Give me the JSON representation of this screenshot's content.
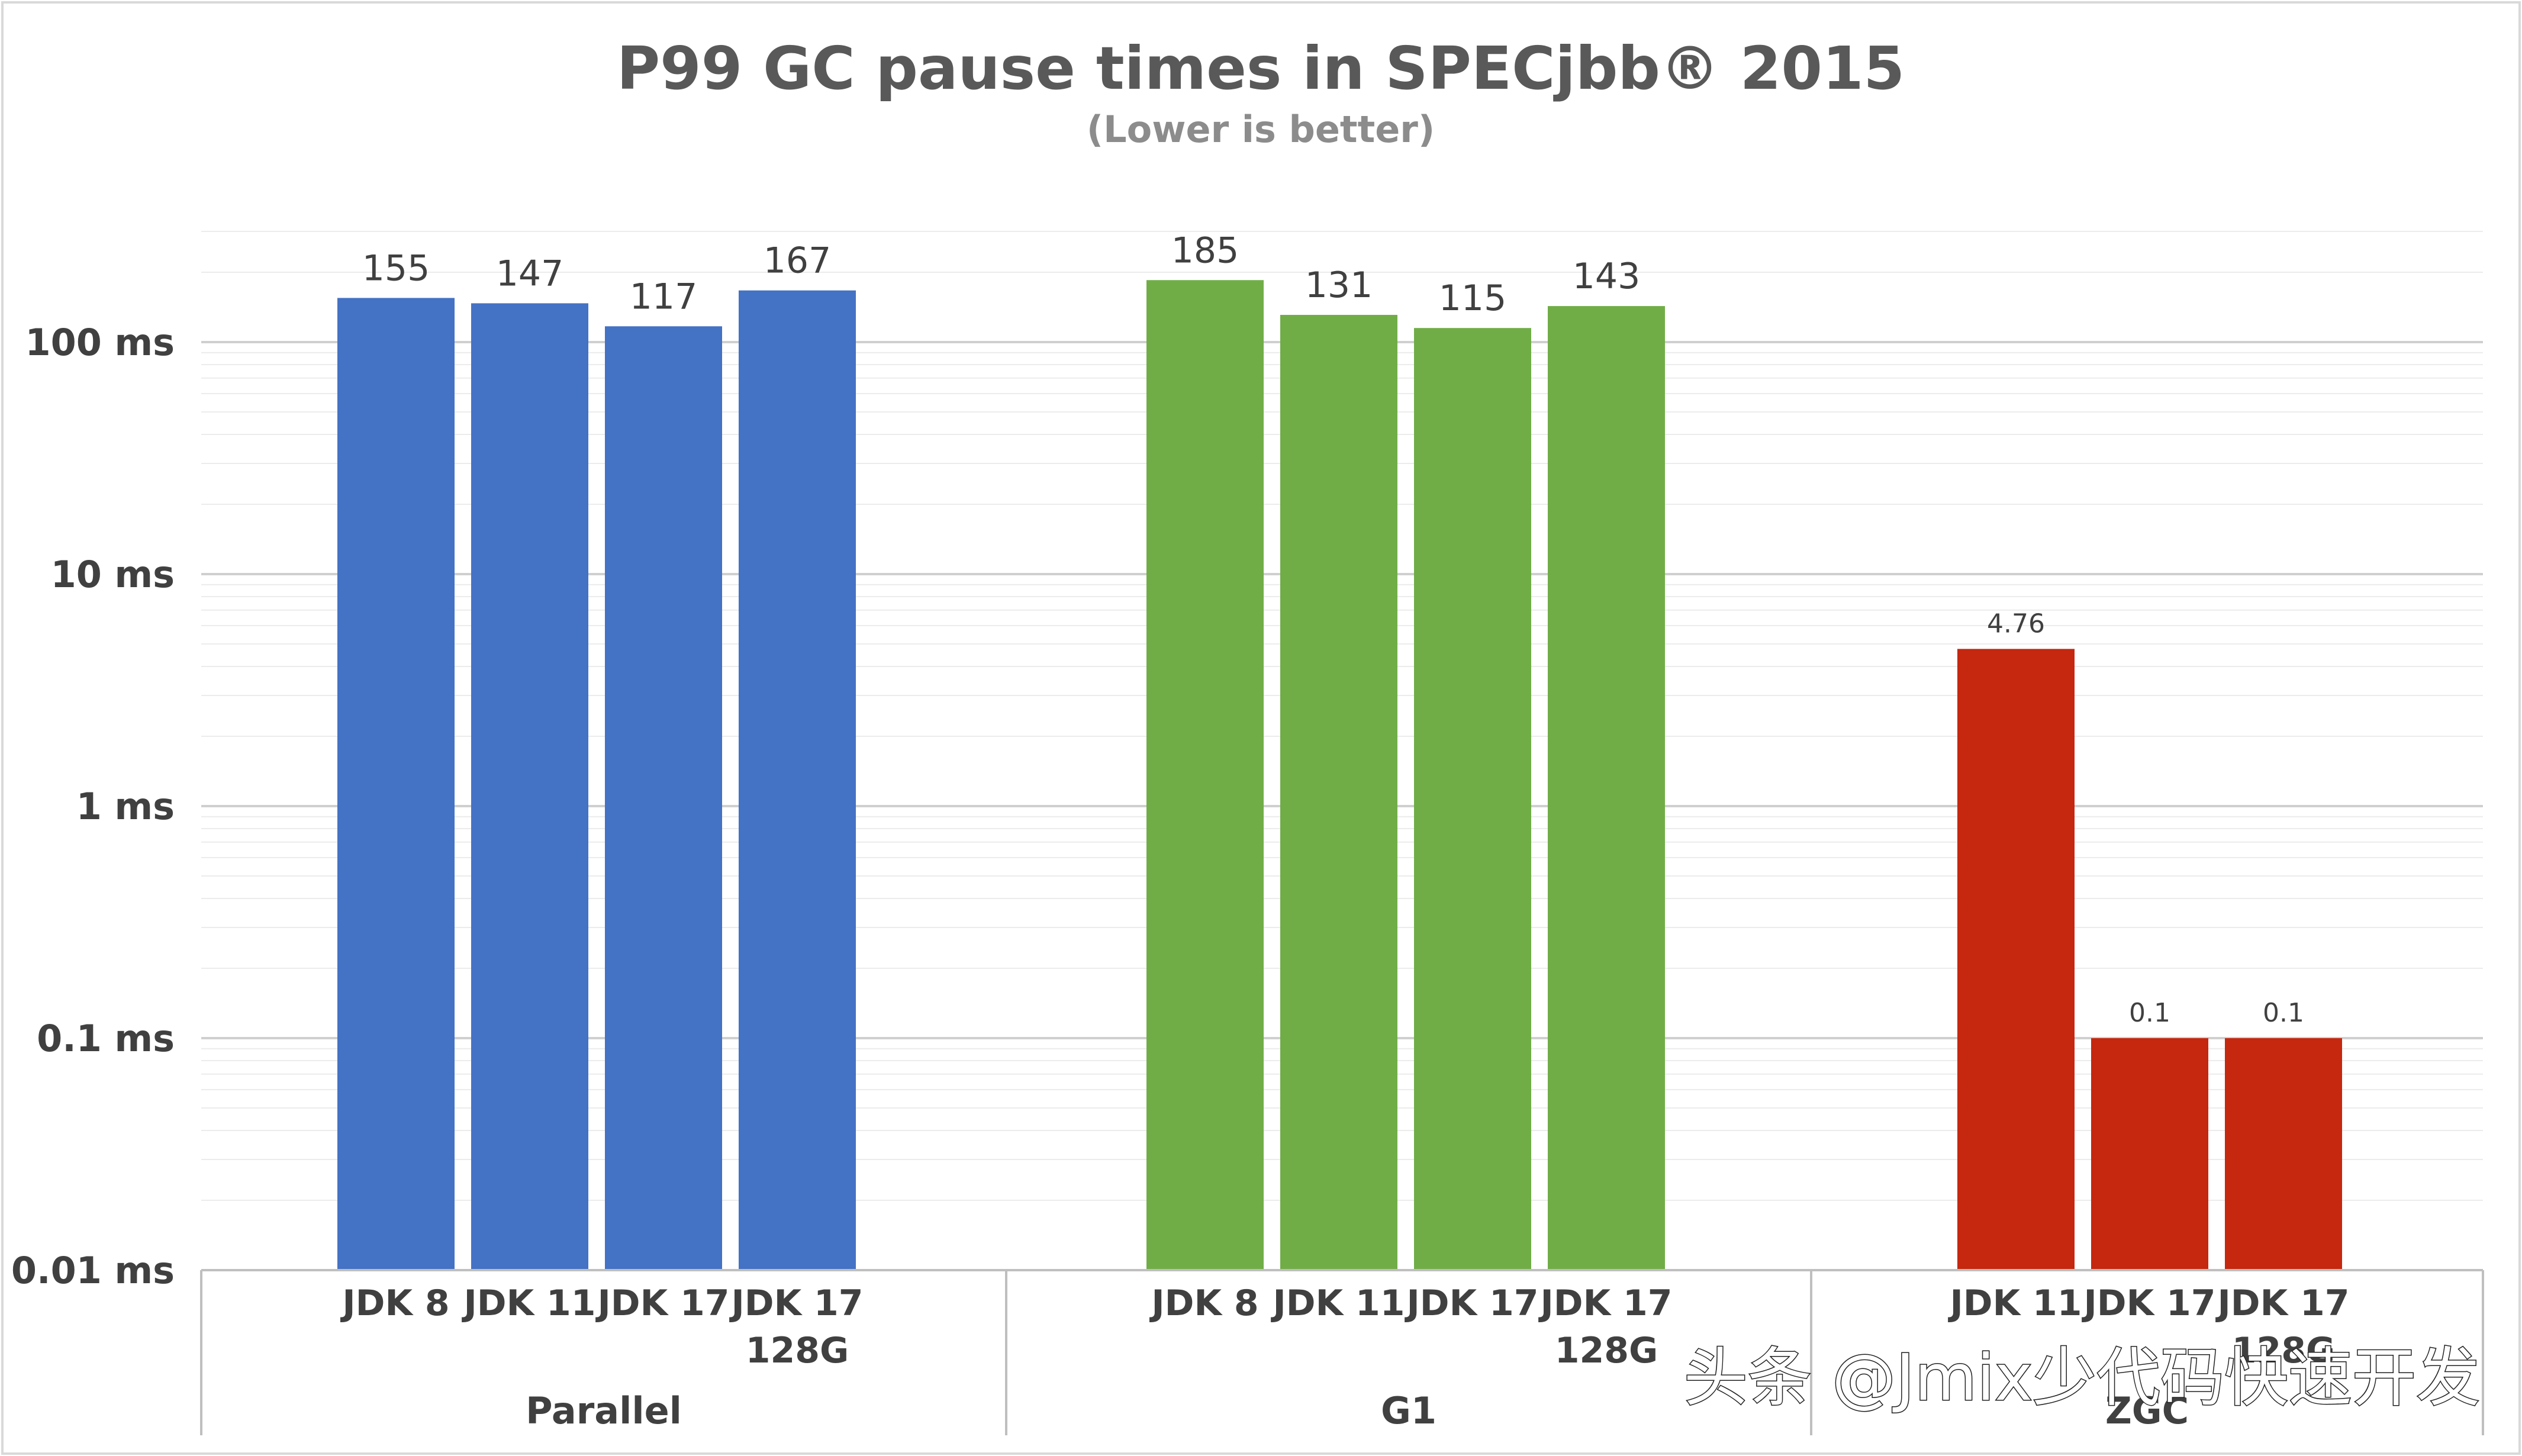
{
  "chart_data": {
    "type": "bar",
    "title": "P99 GC pause times in SPECjbb® 2015",
    "subtitle": "(Lower is better)",
    "yscale": "log",
    "ylim": [
      0.01,
      300
    ],
    "yticks": [
      {
        "value": 100,
        "label": "100 ms"
      },
      {
        "value": 10,
        "label": "10 ms"
      },
      {
        "value": 1,
        "label": "1 ms"
      },
      {
        "value": 0.1,
        "label": "0.1 ms"
      },
      {
        "value": 0.01,
        "label": "0.01 ms"
      }
    ],
    "grid": true,
    "legend": "none",
    "groups": [
      {
        "name": "Parallel",
        "color": "#4472c4",
        "bars": [
          {
            "category": [
              "JDK 8"
            ],
            "value": 155,
            "label": "155"
          },
          {
            "category": [
              "JDK 11"
            ],
            "value": 147,
            "label": "147"
          },
          {
            "category": [
              "JDK 17"
            ],
            "value": 117,
            "label": "117"
          },
          {
            "category": [
              "JDK 17",
              "128G"
            ],
            "value": 167,
            "label": "167"
          }
        ]
      },
      {
        "name": "G1",
        "color": "#70ad47",
        "bars": [
          {
            "category": [
              "JDK 8"
            ],
            "value": 185,
            "label": "185"
          },
          {
            "category": [
              "JDK 11"
            ],
            "value": 131,
            "label": "131"
          },
          {
            "category": [
              "JDK 17"
            ],
            "value": 115,
            "label": "115"
          },
          {
            "category": [
              "JDK 17",
              "128G"
            ],
            "value": 143,
            "label": "143"
          }
        ]
      },
      {
        "name": "ZGC",
        "color": "#c5270f",
        "bars": [
          {
            "category": [
              "JDK 11"
            ],
            "value": 4.76,
            "label": "4.76"
          },
          {
            "category": [
              "JDK 17"
            ],
            "value": 0.1,
            "label": "0.1"
          },
          {
            "category": [
              "JDK 17",
              "128G"
            ],
            "value": 0.1,
            "label": "0.1"
          }
        ]
      }
    ]
  },
  "watermark": "头条 @Jmix少代码快速开发"
}
